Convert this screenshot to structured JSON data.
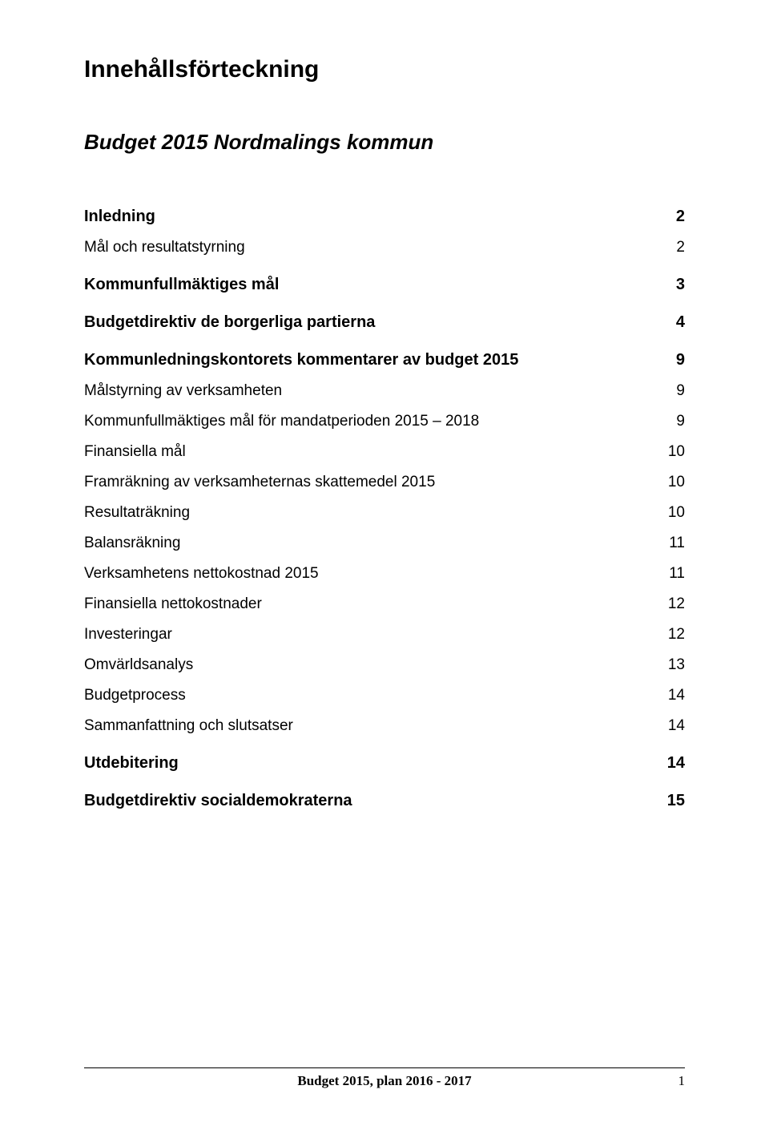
{
  "doc_title": "Innehållsförteckning",
  "sub_title": "Budget 2015 Nordmalings kommun",
  "toc": [
    {
      "level": "h1",
      "label": "Inledning",
      "page": "2",
      "first": true
    },
    {
      "level": "h2",
      "label": "Mål och resultatstyrning",
      "page": "2"
    },
    {
      "level": "h1",
      "label": "Kommunfullmäktiges mål",
      "page": "3"
    },
    {
      "level": "h1",
      "label": "Budgetdirektiv de borgerliga partierna",
      "page": "4"
    },
    {
      "level": "h1",
      "label": "Kommunledningskontorets kommentarer av budget 2015",
      "page": "9"
    },
    {
      "level": "h2",
      "label": "Målstyrning av verksamheten",
      "page": "9"
    },
    {
      "level": "h2",
      "label": "Kommunfullmäktiges mål för mandatperioden 2015 – 2018",
      "page": "9"
    },
    {
      "level": "h2",
      "label": "Finansiella mål",
      "page": "10"
    },
    {
      "level": "h2",
      "label": "Framräkning av verksamheternas skattemedel 2015",
      "page": "10"
    },
    {
      "level": "h2",
      "label": "Resultaträkning",
      "page": "10"
    },
    {
      "level": "h2",
      "label": "Balansräkning",
      "page": "11"
    },
    {
      "level": "h2",
      "label": "Verksamhetens nettokostnad 2015",
      "page": "11"
    },
    {
      "level": "h2",
      "label": "Finansiella nettokostnader",
      "page": "12"
    },
    {
      "level": "h2",
      "label": "Investeringar",
      "page": "12"
    },
    {
      "level": "h2",
      "label": "Omvärldsanalys",
      "page": "13"
    },
    {
      "level": "h2",
      "label": "Budgetprocess",
      "page": "14"
    },
    {
      "level": "h2",
      "label": "Sammanfattning och slutsatser",
      "page": "14"
    },
    {
      "level": "h1",
      "label": "Utdebitering",
      "page": "14"
    },
    {
      "level": "h1",
      "label": "Budgetdirektiv socialdemokraterna",
      "page": "15"
    }
  ],
  "footer": {
    "center": "Budget 2015, plan 2016 - 2017",
    "pagenum": "1"
  }
}
